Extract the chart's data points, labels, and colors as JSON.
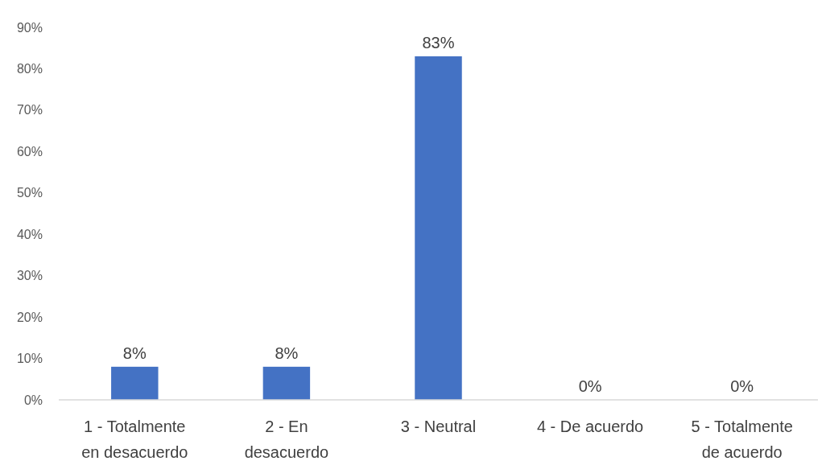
{
  "chart_data": {
    "type": "bar",
    "categories": [
      "1 - Totalmente en desacuerdo",
      "2 - En desacuerdo",
      "3 - Neutral",
      "4 - De acuerdo",
      "5 - Totalmente de acuerdo"
    ],
    "values": [
      8,
      8,
      83,
      0,
      0
    ],
    "value_labels": [
      "8%",
      "8%",
      "83%",
      "0%",
      "0%"
    ],
    "color": "#4472c4",
    "ylim": [
      0,
      90
    ],
    "yticks": [
      {
        "value": 0,
        "label": "0%"
      },
      {
        "value": 10,
        "label": "10%"
      },
      {
        "value": 20,
        "label": "20%"
      },
      {
        "value": 30,
        "label": "30%"
      },
      {
        "value": 40,
        "label": "40%"
      },
      {
        "value": 50,
        "label": "50%"
      },
      {
        "value": 60,
        "label": "60%"
      },
      {
        "value": 70,
        "label": "70%"
      },
      {
        "value": 80,
        "label": "80%"
      },
      {
        "value": 90,
        "label": "90%"
      }
    ],
    "grid": false
  }
}
